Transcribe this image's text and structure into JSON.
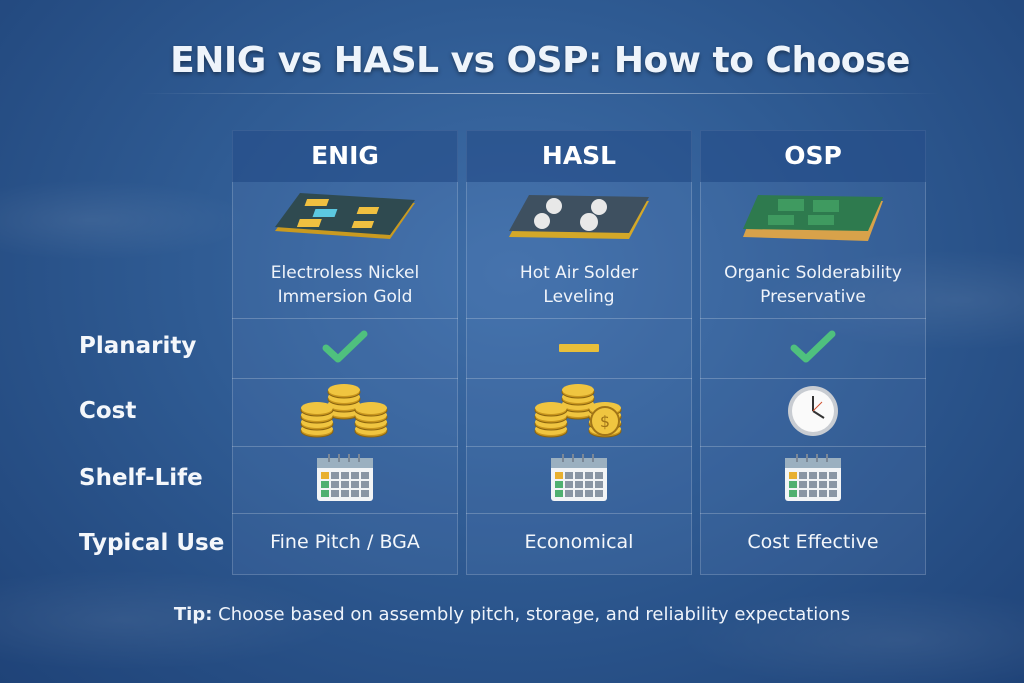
{
  "title": "ENIG vs HASL vs OSP: How to Choose",
  "columns": [
    {
      "name": "ENIG",
      "desc1": "Electroless Nickel",
      "desc2": "Immersion Gold",
      "planarity": "check-icon",
      "cost": "coin-stacks-icon",
      "shelf_life": "calendar-icon",
      "typical_use": "Fine Pitch / BGA"
    },
    {
      "name": "HASL",
      "desc1": "Hot Air Solder",
      "desc2": "Leveling",
      "planarity": "dash-icon",
      "cost": "coin-stacks-dollar-icon",
      "shelf_life": "calendar-icon",
      "typical_use": "Economical"
    },
    {
      "name": "OSP",
      "desc1": "Organic Solderability",
      "desc2": "Preservative",
      "planarity": "check-icon",
      "cost": "clock-icon",
      "shelf_life": "calendar-icon",
      "typical_use": "Cost Effective"
    }
  ],
  "rows": {
    "planarity": "Planarity",
    "cost": "Cost",
    "shelf_life": "Shelf-Life",
    "typical_use": "Typical Use"
  },
  "tip": {
    "label": "Tip:",
    "text": " Choose based on assembly pitch, storage, and reliability expectations"
  },
  "colors": {
    "check": "#4fc07e",
    "dash": "#e8bf3a",
    "gold": "#e2b53a"
  }
}
